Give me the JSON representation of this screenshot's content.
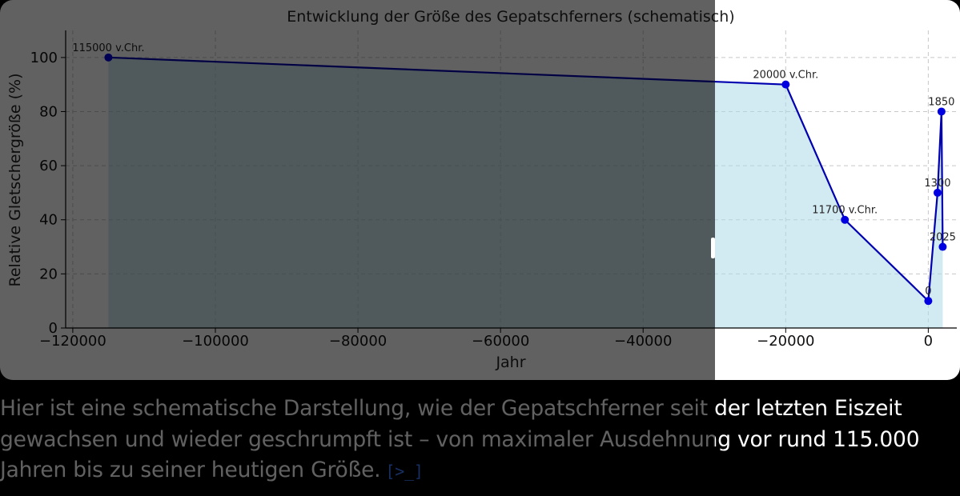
{
  "chart_data": {
    "type": "line",
    "title": "Entwicklung der Größe des Gepatschferners (schematisch)",
    "xlabel": "Jahr",
    "ylabel": "Relative Gletschergröße (%)",
    "xlim": [
      -121000,
      4000
    ],
    "ylim": [
      0,
      110
    ],
    "grid": true,
    "area_fill": true,
    "x_ticks": [
      {
        "value": -120000,
        "label": "−120000"
      },
      {
        "value": -100000,
        "label": "−100000"
      },
      {
        "value": -80000,
        "label": "−80000"
      },
      {
        "value": -60000,
        "label": "−60000"
      },
      {
        "value": -40000,
        "label": "−40000"
      },
      {
        "value": -20000,
        "label": "−20000"
      },
      {
        "value": 0,
        "label": "0"
      }
    ],
    "y_ticks": [
      {
        "value": 0,
        "label": "0"
      },
      {
        "value": 20,
        "label": "20"
      },
      {
        "value": 40,
        "label": "40"
      },
      {
        "value": 60,
        "label": "60"
      },
      {
        "value": 80,
        "label": "80"
      },
      {
        "value": 100,
        "label": "100"
      }
    ],
    "points": [
      {
        "x": -115000,
        "y": 100,
        "label": "115000 v.Chr."
      },
      {
        "x": -20000,
        "y": 90,
        "label": "20000 v.Chr."
      },
      {
        "x": -11700,
        "y": 40,
        "label": "11700 v.Chr."
      },
      {
        "x": 0,
        "y": 10,
        "label": "0"
      },
      {
        "x": 1300,
        "y": 50,
        "label": "1300"
      },
      {
        "x": 1850,
        "y": 80,
        "label": "1850"
      },
      {
        "x": 2025,
        "y": 30,
        "label": "2025"
      }
    ],
    "colors": {
      "line": "#0000b0",
      "marker": "#0000e0",
      "fill": "#add8e6",
      "grid": "#c8c8c8"
    }
  },
  "answer": {
    "text": "Hier ist eine schematische Darstellung, wie der Gepatschferner seit der letzten Eiszeit gewachsen und wieder geschrumpft ist – von maximaler Ausdehnung vor rund 115.000 Jahren bis zu seiner heutigen Größe.",
    "code_icon": "code-interpreter-icon",
    "code_glyph": "[>_]"
  },
  "colors": {
    "accent": "#3d7bff",
    "background": "#000000",
    "card": "#ffffff"
  }
}
